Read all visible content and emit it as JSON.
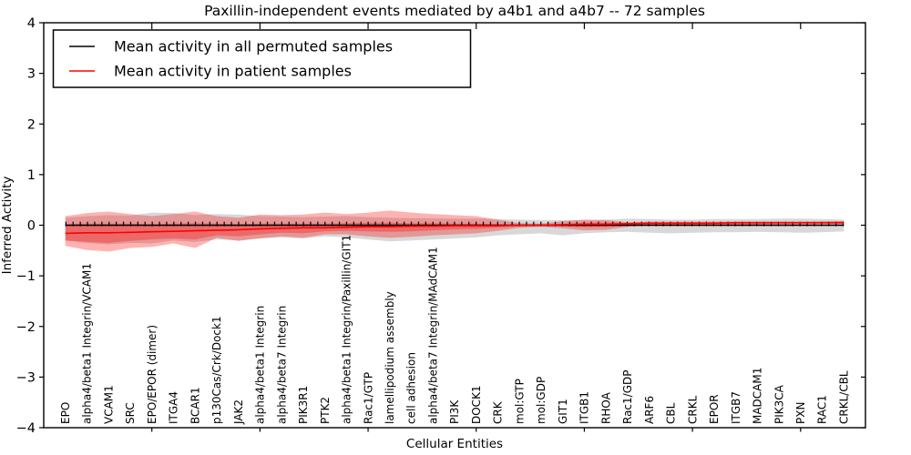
{
  "title": "Paxillin-independent events mediated by a4b1 and a4b7 -- 72 samples",
  "legend": {
    "items": [
      {
        "label": "Mean activity in all permuted samples",
        "color": "#000000"
      },
      {
        "label": "Mean activity in patient samples",
        "color": "#ff0000"
      }
    ]
  },
  "axes": {
    "ylabel": "Inferred Activity",
    "xlabel": "Cellular Entities",
    "ytick_labels": [
      "4",
      "3",
      "2",
      "1",
      "0",
      "−1",
      "−2",
      "−3",
      "−4"
    ]
  },
  "chart_data": {
    "type": "area",
    "title": "Paxillin-independent events mediated by a4b1 and a4b7 -- 72 samples",
    "xlabel": "Cellular Entities",
    "ylabel": "Inferred Activity",
    "ylim": [
      -4,
      4
    ],
    "grid": false,
    "legend_position": "upper left",
    "zero_line_markers": true,
    "categories": [
      "EPO",
      "alpha4/beta1 Integrin/VCAM1",
      "VCAM1",
      "SRC",
      "EPO/EPOR (dimer)",
      "ITGA4",
      "BCAR1",
      "p130Cas/Crk/Dock1",
      "JAK2",
      "alpha4/beta1 Integrin",
      "alpha4/beta7 Integrin",
      "PIK3R1",
      "PTK2",
      "alpha4/beta1 Integrin/Paxillin/GIT1",
      "Rac1/GTP",
      "lamellipodium assembly",
      "cell adhesion",
      "alpha4/beta7 Integrin/MAdCAM1",
      "PI3K",
      "DOCK1",
      "CRK",
      "mol:GTP",
      "mol:GDP",
      "GIT1",
      "ITGB1",
      "RHOA",
      "Rac1/GDP",
      "ARF6",
      "CBL",
      "CRKL",
      "EPOR",
      "ITGB7",
      "MADCAM1",
      "PIK3CA",
      "PXN",
      "RAC1",
      "CRKL/CBL"
    ],
    "series": [
      {
        "name": "permuted-band",
        "type": "band",
        "fill": "#999999",
        "opacity": 0.38,
        "upper": [
          0.15,
          0.18,
          0.2,
          0.19,
          0.25,
          0.24,
          0.2,
          0.22,
          0.21,
          0.18,
          0.17,
          0.16,
          0.17,
          0.18,
          0.16,
          0.15,
          0.14,
          0.14,
          0.13,
          0.13,
          0.12,
          0.11,
          0.1,
          0.1,
          0.1,
          0.11,
          0.13,
          0.12,
          0.11,
          0.11,
          0.12,
          0.12,
          0.12,
          0.13,
          0.13,
          0.12,
          0.11
        ],
        "lower": [
          -0.3,
          -0.35,
          -0.38,
          -0.35,
          -0.36,
          -0.3,
          -0.33,
          -0.28,
          -0.3,
          -0.26,
          -0.24,
          -0.26,
          -0.22,
          -0.24,
          -0.28,
          -0.32,
          -0.3,
          -0.28,
          -0.26,
          -0.24,
          -0.2,
          -0.18,
          -0.16,
          -0.2,
          -0.16,
          -0.14,
          -0.13,
          -0.15,
          -0.16,
          -0.15,
          -0.14,
          -0.14,
          -0.13,
          -0.14,
          -0.15,
          -0.14,
          -0.12
        ]
      },
      {
        "name": "patient-band-outer",
        "type": "band",
        "fill": "#ff0000",
        "opacity": 0.3,
        "upper": [
          0.18,
          0.24,
          0.27,
          0.22,
          0.18,
          0.22,
          0.27,
          0.18,
          0.15,
          0.21,
          0.2,
          0.21,
          0.25,
          0.22,
          0.25,
          0.29,
          0.25,
          0.22,
          0.2,
          0.18,
          0.11,
          0.04,
          0.03,
          0.08,
          0.11,
          0.1,
          0.06,
          0.07,
          0.07,
          0.07,
          0.07,
          0.07,
          0.07,
          0.07,
          0.07,
          0.07,
          0.08
        ],
        "lower": [
          -0.41,
          -0.49,
          -0.52,
          -0.45,
          -0.43,
          -0.36,
          -0.45,
          -0.25,
          -0.31,
          -0.26,
          -0.22,
          -0.25,
          -0.18,
          -0.18,
          -0.22,
          -0.25,
          -0.23,
          -0.2,
          -0.18,
          -0.16,
          -0.11,
          -0.05,
          -0.03,
          -0.06,
          -0.1,
          -0.09,
          -0.03,
          0,
          0,
          0,
          0,
          0.01,
          0.01,
          0.01,
          0.01,
          0.02,
          0.02
        ]
      },
      {
        "name": "patient-band-inner",
        "type": "band",
        "fill": "#ff0000",
        "opacity": 0.3,
        "upper": [
          0.02,
          0.03,
          0.03,
          0.03,
          0.02,
          0.03,
          0.04,
          0.03,
          0.02,
          0.03,
          0.03,
          0.03,
          0.03,
          0.04,
          0.05,
          0.05,
          0.04,
          0.04,
          0.03,
          0.03,
          0.02,
          0.01,
          0.01,
          0.03,
          0.05,
          0.05,
          0.05,
          0.06,
          0.06,
          0.06,
          0.06,
          0.06,
          0.06,
          0.06,
          0.06,
          0.07,
          0.07
        ],
        "lower": [
          -0.3,
          -0.33,
          -0.35,
          -0.31,
          -0.28,
          -0.26,
          -0.28,
          -0.2,
          -0.22,
          -0.18,
          -0.15,
          -0.16,
          -0.12,
          -0.11,
          -0.12,
          -0.13,
          -0.12,
          -0.1,
          -0.08,
          -0.07,
          -0.05,
          -0.02,
          -0.01,
          -0.02,
          -0.04,
          -0.03,
          -0.01,
          0.01,
          0.01,
          0.02,
          0.02,
          0.02,
          0.02,
          0.03,
          0.03,
          0.03,
          0.03
        ]
      },
      {
        "name": "Mean activity in all permuted samples",
        "type": "line",
        "color": "#000000",
        "width": 1.4,
        "values": [
          0,
          0,
          0,
          0,
          0,
          0,
          0,
          0,
          0,
          0,
          0,
          0,
          0,
          0,
          0,
          0,
          0,
          0,
          0,
          0,
          0,
          0,
          0,
          0,
          0,
          0,
          0,
          0,
          0,
          0,
          0,
          0,
          0,
          0,
          0,
          0,
          0
        ]
      },
      {
        "name": "Mean activity in patient samples",
        "type": "line",
        "color": "#ff0000",
        "width": 1.6,
        "values": [
          -0.16,
          -0.15,
          -0.15,
          -0.14,
          -0.13,
          -0.12,
          -0.11,
          -0.1,
          -0.09,
          -0.07,
          -0.06,
          -0.05,
          -0.05,
          -0.04,
          -0.03,
          -0.03,
          -0.02,
          -0.02,
          -0.01,
          -0.01,
          -0.01,
          0,
          0,
          0.01,
          0.02,
          0.02,
          0.03,
          0.04,
          0.04,
          0.04,
          0.04,
          0.05,
          0.05,
          0.05,
          0.05,
          0.05,
          0.05
        ]
      }
    ]
  }
}
